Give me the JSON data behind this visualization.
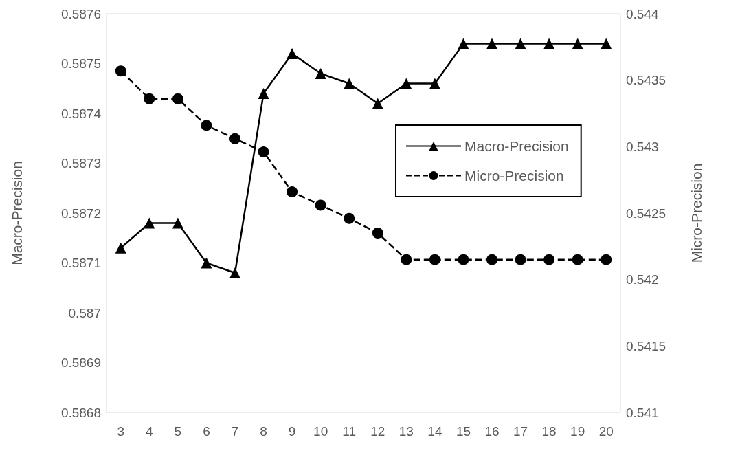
{
  "chart_data": {
    "type": "line",
    "categories": [
      "3",
      "4",
      "5",
      "6",
      "7",
      "8",
      "9",
      "10",
      "11",
      "12",
      "13",
      "14",
      "15",
      "16",
      "17",
      "18",
      "19",
      "20"
    ],
    "ylabel": "Macro-Precision",
    "y2label": "Micro-Precision",
    "ylim": [
      0.5868,
      0.5876
    ],
    "yticks": [
      0.5868,
      0.5869,
      0.587,
      0.5871,
      0.5872,
      0.5873,
      0.5874,
      0.5875,
      0.5876
    ],
    "y2lim": [
      0.541,
      0.544
    ],
    "y2ticks": [
      0.541,
      0.5415,
      0.542,
      0.5425,
      0.543,
      0.5435,
      0.544
    ],
    "grid": false,
    "legend": "right",
    "series": [
      {
        "name": "Macro-Precision",
        "color": "#000000",
        "marker": "triangle",
        "line_style": "solid",
        "values": [
          0.58713,
          0.58718,
          0.58718,
          0.5871,
          0.58708,
          0.58744,
          0.58752,
          0.58748,
          0.58746,
          0.58742,
          0.58746,
          0.58746,
          0.58754,
          0.58754,
          0.58754,
          0.58754,
          0.58754,
          0.58754
        ]
      },
      {
        "name": "Micro-Precision",
        "color": "#000000",
        "marker": "circle",
        "line_style": "dashed",
        "axis": "y2",
        "values": [
          0.54357,
          0.54336,
          0.54336,
          0.54316,
          0.54306,
          0.54296,
          0.54266,
          0.54256,
          0.54246,
          0.54235,
          0.54215,
          0.54215,
          0.54215,
          0.54215,
          0.54215,
          0.54215,
          0.54215,
          0.54215
        ]
      }
    ]
  }
}
